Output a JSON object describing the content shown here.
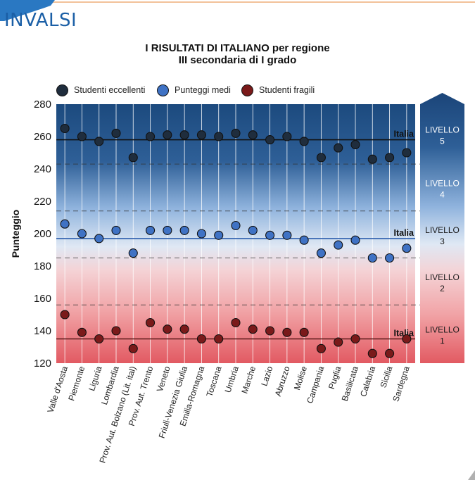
{
  "logo": {
    "text": "INVALSI",
    "colors": {
      "text": "#1b5fa6",
      "wing": "#2a78c2"
    }
  },
  "title": {
    "line1": "I RISULTATI DI ITALIANO per regione",
    "line2": "III secondaria di I grado"
  },
  "legend": [
    {
      "label": "Studenti eccellenti",
      "color": "#1f2d3d"
    },
    {
      "label": "Punteggi medi",
      "color": "#3f72c4"
    },
    {
      "label": "Studenti fragili",
      "color": "#7a1a1a"
    }
  ],
  "chart_data": {
    "type": "scatter",
    "ylabel": "Punteggio",
    "ylim": [
      120,
      280
    ],
    "yticks": [
      120,
      140,
      160,
      180,
      200,
      220,
      240,
      260,
      280
    ],
    "categories": [
      "Valle d'Aosta",
      "Piemonte",
      "Liguria",
      "Lombardia",
      "Prov. Aut. Bolzano (Lit. ital)",
      "Prov. Aut. Trento",
      "Veneto",
      "Friuli-Venezia Giulia",
      "Emilia-Romagna",
      "Toscana",
      "Umbria",
      "Marche",
      "Lazio",
      "Abruzzo",
      "Molise",
      "Campania",
      "Puglia",
      "Basilicata",
      "Calabria",
      "Sicilia",
      "Sardegna"
    ],
    "series": [
      {
        "name": "Studenti eccellenti",
        "color": "#1f2d3d",
        "values": [
          265,
          260,
          257,
          262,
          247,
          260,
          261,
          261,
          261,
          260,
          262,
          261,
          258,
          260,
          257,
          247,
          253,
          255,
          246,
          247,
          250
        ]
      },
      {
        "name": "Punteggi medi",
        "color": "#3f72c4",
        "values": [
          206,
          200,
          197,
          202,
          188,
          202,
          202,
          202,
          200,
          199,
          205,
          202,
          199,
          199,
          196,
          188,
          193,
          196,
          185,
          185,
          191
        ]
      },
      {
        "name": "Studenti fragili",
        "color": "#7a1a1a",
        "values": [
          150,
          139,
          135,
          140,
          129,
          145,
          141,
          141,
          135,
          135,
          145,
          141,
          140,
          139,
          139,
          129,
          133,
          135,
          126,
          126,
          135
        ]
      }
    ],
    "reference_lines": [
      {
        "label": "Italia",
        "value": 258,
        "color": "#111111"
      },
      {
        "label": "Italia",
        "value": 197,
        "color": "#2f5fae"
      },
      {
        "label": "Italia",
        "value": 135,
        "color": "#5a1818"
      }
    ],
    "level_boundaries": [
      156,
      185,
      214,
      243
    ],
    "levels": [
      {
        "line1": "LIVELLO",
        "line2": "5",
        "from": 243,
        "to": 280
      },
      {
        "line1": "LIVELLO",
        "line2": "4",
        "from": 214,
        "to": 243
      },
      {
        "line1": "LIVELLO",
        "line2": "3",
        "from": 185,
        "to": 214
      },
      {
        "line1": "LIVELLO",
        "line2": "2",
        "from": 156,
        "to": 185
      },
      {
        "line1": "LIVELLO",
        "line2": "1",
        "from": 120,
        "to": 156
      }
    ]
  }
}
